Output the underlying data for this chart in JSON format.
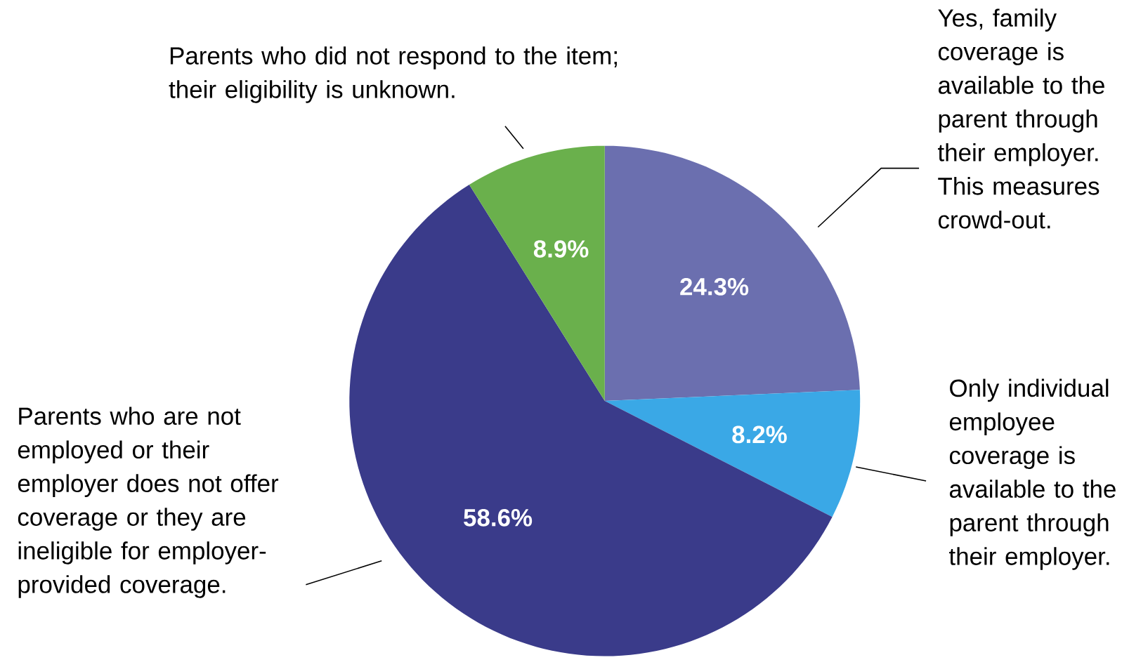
{
  "chart_data": {
    "type": "pie",
    "categories": [
      "Yes, family coverage is available to the parent through their employer. This measures crowd-out.",
      "Only individual employee coverage is available to the parent through their employer.",
      "Parents who are not employed or their employer does not offer coverage or they are ineligible for employer-provided coverage.",
      "Parents who did not respond to the item; their eligibility is unknown."
    ],
    "values": [
      24.3,
      8.2,
      58.6,
      8.9
    ],
    "value_labels": [
      "24.3%",
      "8.2%",
      "58.6%",
      "8.9%"
    ],
    "colors": [
      "#6b6faf",
      "#3aa8e6",
      "#3a3b8a",
      "#6ab04c"
    ]
  }
}
